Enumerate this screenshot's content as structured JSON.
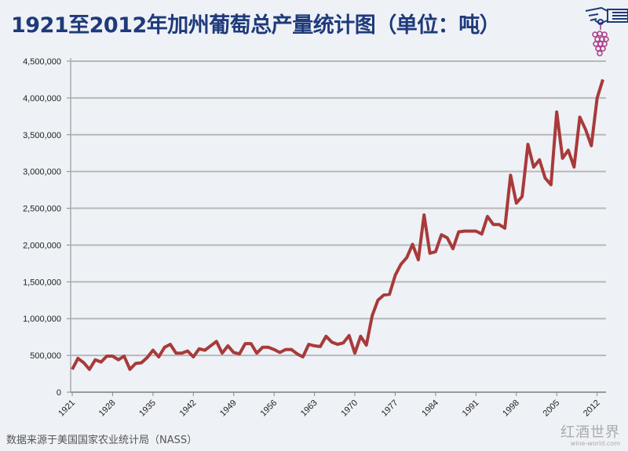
{
  "title": "1921至2012年加州葡萄总产量统计图（单位：吨）",
  "source": "数据来源于美国国家农业统计局（NASS）",
  "watermark": {
    "cn": "红酒世界",
    "en": "wine-world.com"
  },
  "icons": {
    "logo": "hand-holding-grapes-icon"
  },
  "colors": {
    "line": "#a83a3a",
    "title": "#1f3a7a",
    "grid": "#b8b8b8",
    "background": "#eef1f6"
  },
  "chart_data": {
    "type": "line",
    "title": "1921至2012年加州葡萄总产量统计图（单位：吨）",
    "xlabel": "",
    "ylabel": "",
    "ylim": [
      0,
      4500000
    ],
    "xlim": [
      1921,
      2013
    ],
    "grid": "horizontal",
    "yticks": [
      "0",
      "500,000",
      "1,000,000",
      "1,500,000",
      "2,000,000",
      "2,500,000",
      "3,000,000",
      "3,500,000",
      "4,000,000",
      "4,500,000"
    ],
    "xticks": [
      "1921",
      "1928",
      "1935",
      "1942",
      "1949",
      "1956",
      "1963",
      "1970",
      "1977",
      "1984",
      "1991",
      "1998",
      "2005",
      "2012"
    ],
    "x_start": 1921,
    "values": [
      310000,
      460000,
      400000,
      310000,
      440000,
      410000,
      490000,
      490000,
      440000,
      490000,
      310000,
      390000,
      400000,
      470000,
      570000,
      480000,
      610000,
      650000,
      530000,
      530000,
      560000,
      480000,
      590000,
      570000,
      630000,
      690000,
      530000,
      630000,
      540000,
      520000,
      660000,
      660000,
      530000,
      610000,
      610000,
      580000,
      540000,
      580000,
      580000,
      520000,
      480000,
      650000,
      630000,
      620000,
      760000,
      680000,
      650000,
      670000,
      770000,
      530000,
      760000,
      640000,
      1040000,
      1250000,
      1320000,
      1330000,
      1590000,
      1740000,
      1830000,
      2010000,
      1800000,
      2410000,
      1890000,
      1910000,
      2140000,
      2100000,
      1950000,
      2180000,
      2190000,
      2190000,
      2190000,
      2150000,
      2390000,
      2280000,
      2280000,
      2230000,
      2950000,
      2570000,
      2660000,
      3370000,
      3060000,
      3160000,
      2910000,
      2820000,
      3810000,
      3180000,
      3290000,
      3060000,
      3740000,
      3570000,
      3350000,
      4000000,
      4250000
    ]
  }
}
